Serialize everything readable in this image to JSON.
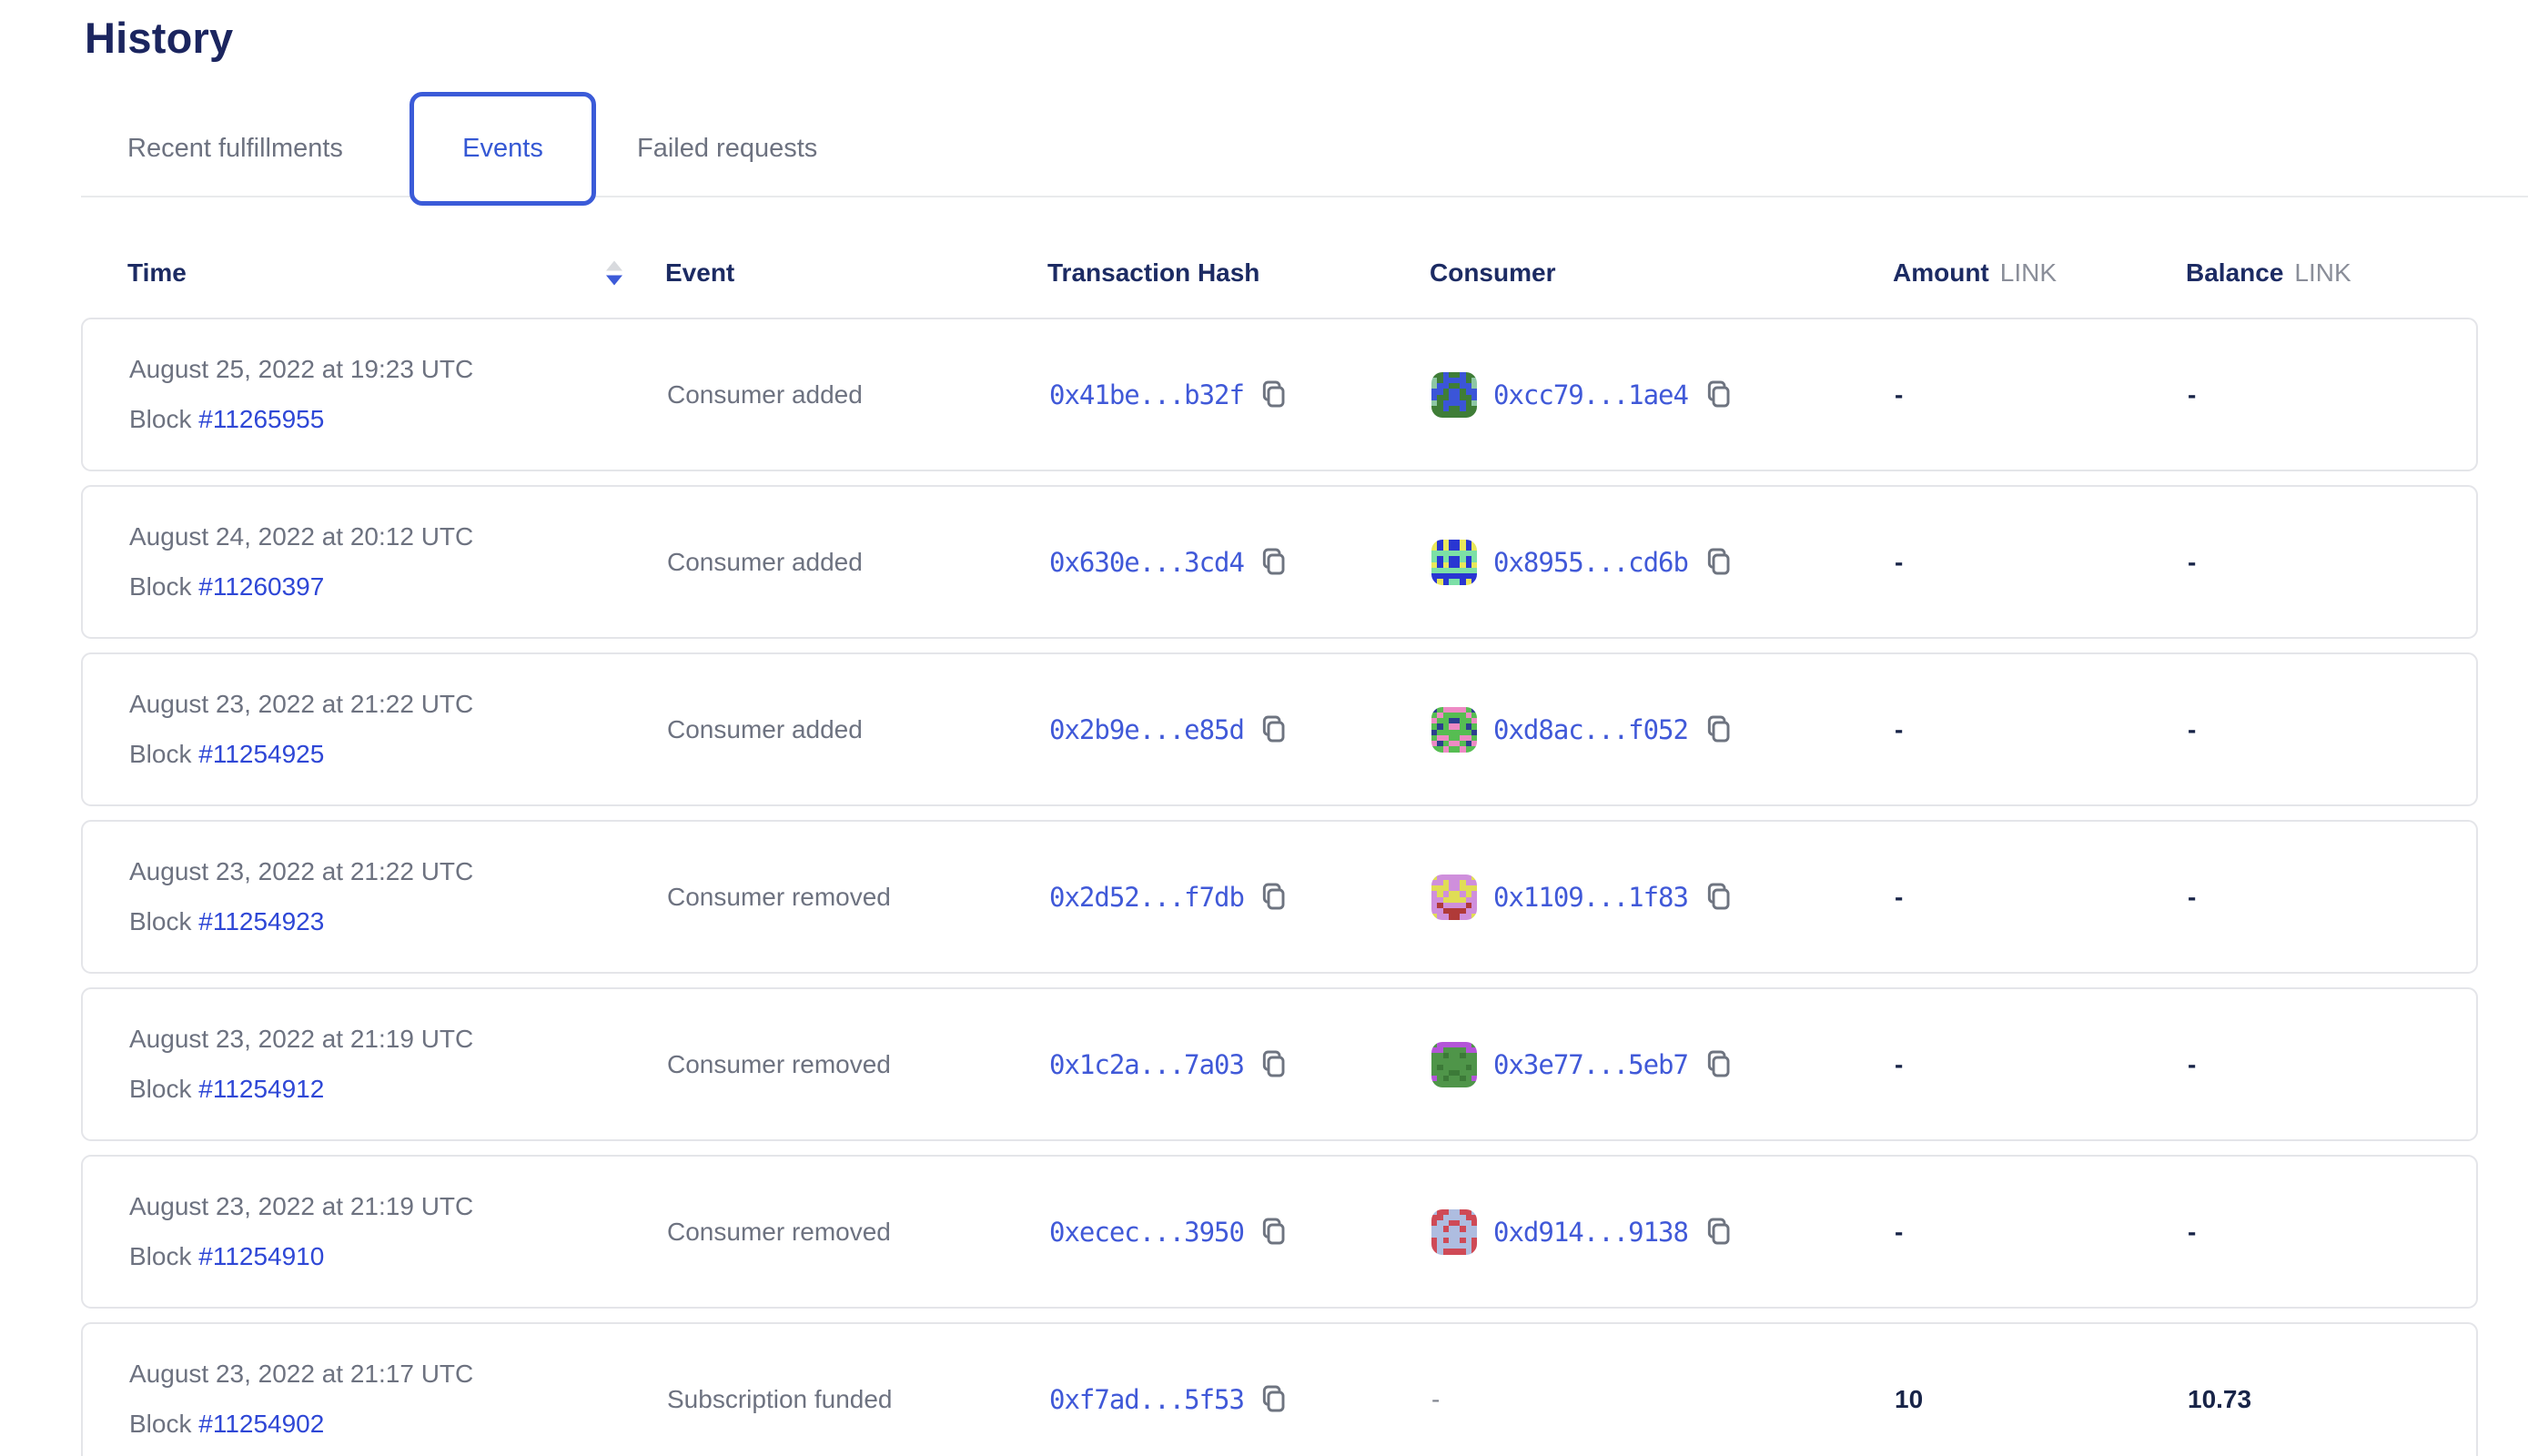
{
  "page": {
    "title": "History"
  },
  "tabs": {
    "recent": "Recent fulfillments",
    "events": "Events",
    "failed": "Failed requests",
    "active": "Events"
  },
  "icons": {
    "copy": "⧉",
    "sort_asc": "▲",
    "sort_desc": "▼"
  },
  "colors": {
    "brand_blue": "#375bd2",
    "link_blue": "#4059d8",
    "block_link_blue": "#2e47d6",
    "heading_navy": "#1b255f",
    "text_gray": "#6d7280",
    "card_border": "#e4e5e9",
    "sort_active": "#3c5ad8",
    "sort_inactive": "#d8dade"
  },
  "table": {
    "columns": {
      "time": "Time",
      "event": "Event",
      "tx": "Transaction Hash",
      "consumer": "Consumer",
      "amount": "Amount",
      "balance": "Balance",
      "unit": "LINK"
    },
    "block_prefix": "Block",
    "sort": {
      "column": "Time",
      "direction": "descending"
    },
    "rows": [
      {
        "date": "August 25, 2022 at 19:23 UTC",
        "block": "#11265955",
        "event": "Consumer added",
        "tx": "0x41be...b32f",
        "consumer": "0xcc79...1ae4",
        "amount": "-",
        "balance": "-",
        "identicon": {
          "palette": {
            "g": "#3f7d37",
            "b": "#3b55d8",
            "m": "#8ec7a4"
          },
          "pixels": [
            "ggbggbgg",
            "mgbbbbgm",
            "mbbggbbm",
            "bbgbbgbb",
            "bggbbggb",
            "mgbbbbgm",
            "ggbggbgg",
            "gggggggg"
          ]
        }
      },
      {
        "date": "August 24, 2022 at 20:12 UTC",
        "block": "#11260397",
        "event": "Consumer added",
        "tx": "0x630e...3cd4",
        "consumer": "0x8955...cd6b",
        "amount": "-",
        "balance": "-",
        "identicon": {
          "palette": {
            "b": "#2936d2",
            "y": "#e9e75a",
            "m": "#7ce0a6"
          },
          "pixels": [
            "ybybbyby",
            "ybybbyby",
            "mmmmmmmm",
            "mbmbbmbm",
            "ybybbyby",
            "mmmmmmmm",
            "bbbbbbbb",
            "bybmmbyb"
          ]
        }
      },
      {
        "date": "August 23, 2022 at 21:22 UTC",
        "block": "#11254925",
        "event": "Consumer added",
        "tx": "0x2b9e...e85d",
        "consumer": "0xd8ac...f052",
        "amount": "-",
        "balance": "-",
        "identicon": {
          "palette": {
            "g": "#56bd52",
            "p": "#ee8ac4",
            "n": "#2c3f8f"
          },
          "pixels": [
            "ngppppgn",
            "gpggggpg",
            "pggnnggp",
            "gngppgng",
            "nggggggn",
            "gppggppg",
            "pngppgnp",
            "ggpggpgg"
          ]
        }
      },
      {
        "date": "August 23, 2022 at 21:22 UTC",
        "block": "#11254923",
        "event": "Consumer removed",
        "tx": "0x2d52...f7db",
        "consumer": "0x1109...1f83",
        "amount": "-",
        "balance": "-",
        "identicon": {
          "palette": {
            "v": "#cf8fdc",
            "y": "#e0dd55",
            "r": "#b03a38"
          },
          "pixels": [
            "yvvvvvvy",
            "vvyvvyvv",
            "yyyvvyyy",
            "vyvyyvyv",
            "vvyyyyvv",
            "vrvvvvrv",
            "vvrrrrvv",
            "yvvrrvvy"
          ]
        }
      },
      {
        "date": "August 23, 2022 at 21:19 UTC",
        "block": "#11254912",
        "event": "Consumer removed",
        "tx": "0x1c2a...7a03",
        "consumer": "0x3e77...5eb7",
        "amount": "-",
        "balance": "-",
        "identicon": {
          "palette": {
            "g": "#4f9549",
            "p": "#b455d8",
            "d": "#3c7a38"
          },
          "pixels": [
            "gppppppg",
            "ppggggpp",
            "ggdggdgg",
            "gggggggg",
            "gdggggdg",
            "gggddggg",
            "pgdggdgp",
            "gggggggg"
          ]
        }
      },
      {
        "date": "August 23, 2022 at 21:19 UTC",
        "block": "#11254910",
        "event": "Consumer removed",
        "tx": "0xecec...3950",
        "consumer": "0xd914...9138",
        "amount": "-",
        "balance": "-",
        "identicon": {
          "palette": {
            "r": "#cf4a56",
            "l": "#aebde0"
          },
          "pixels": [
            "lrrllrrl",
            "rrllllrr",
            "rllrrllr",
            "llrllrll",
            "llllllll",
            "rlrllrlr",
            "rllllllr",
            "rlrrrrlr"
          ]
        }
      },
      {
        "date": "August 23, 2022 at 21:17 UTC",
        "block": "#11254902",
        "event": "Subscription funded",
        "tx": "0xf7ad...5f53",
        "consumer": "-",
        "amount": "10",
        "balance": "10.73",
        "identicon": null
      }
    ]
  }
}
